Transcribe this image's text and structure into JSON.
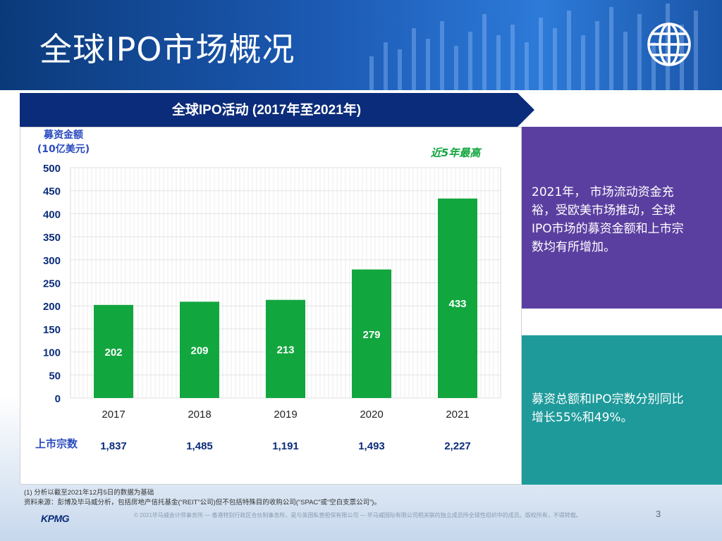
{
  "page": {
    "title": "全球IPO市场概况",
    "page_number": "3"
  },
  "colors": {
    "header": "#1c5ab4",
    "banner": "#0b2c7a",
    "bar": "#12a63f",
    "purple_panel": "#5b3fa0",
    "teal_panel": "#1e9a9b",
    "highlight": "#12a63f",
    "listing_label": "#2a4bbf"
  },
  "icons": {
    "header_icon": "globe-icon"
  },
  "chart_data": {
    "type": "bar",
    "title": "全球IPO活动 (2017年至2021年)",
    "ylabel_line1": "募资金额",
    "ylabel_line2": "(10亿美元)",
    "highlight_note": "近5年最高",
    "categories": [
      "2017",
      "2018",
      "2019",
      "2020",
      "2021"
    ],
    "values": [
      202,
      209,
      213,
      279,
      433
    ],
    "value_labels": [
      "202",
      "209",
      "213",
      "279",
      "433"
    ],
    "ylim": [
      0,
      500
    ],
    "yticks": [
      "0",
      "50",
      "100",
      "150",
      "200",
      "250",
      "300",
      "350",
      "400",
      "450",
      "500"
    ],
    "grid": true,
    "listings_label": "上市宗数",
    "listings": [
      "1,837",
      "1,485",
      "1,191",
      "1,493",
      "2,227"
    ]
  },
  "panels": {
    "purple_text": "2021年， 市场流动资金充裕，受欧美市场推动，全球IPO市场的募资金额和上市宗数均有所增加。",
    "purple_lines": [
      "2021年，  市场流动资金充",
      "裕，受欧美市场推动，全球",
      "IPO市场的募资金额和上市宗",
      "数均有所增加。"
    ],
    "teal_lines": [
      "募资总额和IPO宗数分别同比",
      "增长55%和49%。"
    ]
  },
  "footer": {
    "note1": "(1) 分析以截至2021年12月5日的数据为基础",
    "note2": "资料来源：彭博及毕马威分析，包括房地产信托基金(“REIT”公司)但不包括特殊目的收购公司(“SPAC”或“空白支票公司”)。",
    "copyright": "© 2021毕马威会计师事务所 — 香港特别行政区合伙制事务所，是与英国私营担保有限公司 — 毕马威国际有限公司相关联的独立成员所全球性组织中的成员。版权所有，不得转载。",
    "logo": "KPMG"
  }
}
